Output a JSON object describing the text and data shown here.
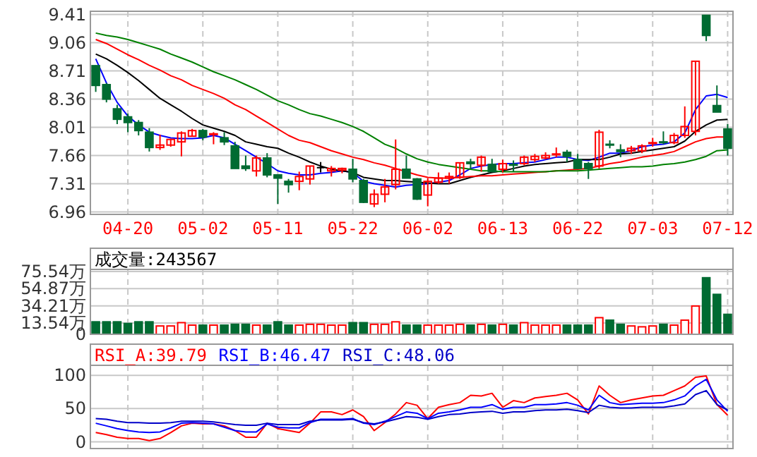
{
  "chart_data": [
    {
      "type": "candlestick",
      "categories": [
        null,
        null,
        null,
        "04-20",
        null,
        null,
        null,
        null,
        null,
        null,
        "05-02",
        null,
        null,
        null,
        null,
        null,
        null,
        "05-11",
        null,
        null,
        null,
        null,
        null,
        null,
        "05-22",
        null,
        null,
        null,
        null,
        null,
        null,
        "06-02",
        null,
        null,
        null,
        null,
        null,
        null,
        "06-13",
        null,
        null,
        null,
        null,
        null,
        null,
        "06-22",
        null,
        null,
        null,
        null,
        null,
        null,
        "07-03",
        null,
        null,
        null,
        null,
        null,
        null,
        "07-12"
      ],
      "ohlc": [
        [
          8.775,
          8.78,
          8.45,
          8.53
        ],
        [
          8.54,
          8.56,
          8.32,
          8.36
        ],
        [
          8.24,
          8.29,
          8.05,
          8.11
        ],
        [
          8.14,
          8.18,
          7.95,
          8.07
        ],
        [
          8.07,
          8.1,
          7.91,
          7.97
        ],
        [
          7.95,
          8.0,
          7.71,
          7.76
        ],
        [
          7.76,
          7.92,
          7.73,
          7.79
        ],
        [
          7.79,
          7.87,
          7.77,
          7.86
        ],
        [
          7.83,
          7.96,
          7.65,
          7.94
        ],
        [
          7.9,
          7.99,
          7.9,
          7.97
        ],
        [
          7.97,
          7.99,
          7.85,
          7.89
        ],
        [
          7.92,
          7.95,
          7.8,
          7.93
        ],
        [
          7.88,
          7.95,
          7.79,
          7.83
        ],
        [
          7.78,
          7.83,
          7.5,
          7.5
        ],
        [
          7.53,
          7.66,
          7.47,
          7.5
        ],
        [
          7.47,
          7.66,
          7.4,
          7.63
        ],
        [
          7.63,
          7.69,
          7.39,
          7.42
        ],
        [
          7.42,
          7.42,
          7.06,
          7.38
        ],
        [
          7.34,
          7.37,
          7.2,
          7.3
        ],
        [
          7.34,
          7.46,
          7.23,
          7.4
        ],
        [
          7.37,
          7.53,
          7.3,
          7.53
        ],
        [
          7.51,
          7.58,
          7.45,
          7.51
        ],
        [
          7.47,
          7.53,
          7.4,
          7.5
        ],
        [
          7.48,
          7.51,
          7.44,
          7.5
        ],
        [
          7.49,
          7.62,
          7.33,
          7.37
        ],
        [
          7.35,
          7.37,
          7.07,
          7.08
        ],
        [
          7.06,
          7.24,
          7.02,
          7.18
        ],
        [
          7.18,
          7.37,
          7.08,
          7.27
        ],
        [
          7.3,
          7.86,
          7.24,
          7.49
        ],
        [
          7.49,
          7.66,
          7.38,
          7.38
        ],
        [
          7.37,
          7.38,
          7.11,
          7.12
        ],
        [
          7.17,
          7.38,
          7.03,
          7.34
        ],
        [
          7.33,
          7.45,
          7.31,
          7.38
        ],
        [
          7.38,
          7.45,
          7.31,
          7.4
        ],
        [
          7.39,
          7.57,
          7.37,
          7.57
        ],
        [
          7.58,
          7.62,
          7.5,
          7.56
        ],
        [
          7.54,
          7.66,
          7.46,
          7.64
        ],
        [
          7.55,
          7.62,
          7.46,
          7.46
        ],
        [
          7.49,
          7.61,
          7.45,
          7.56
        ],
        [
          7.55,
          7.6,
          7.46,
          7.54
        ],
        [
          7.56,
          7.66,
          7.54,
          7.64
        ],
        [
          7.61,
          7.68,
          7.58,
          7.65
        ],
        [
          7.63,
          7.7,
          7.61,
          7.66
        ],
        [
          7.67,
          7.76,
          7.64,
          7.68
        ],
        [
          7.7,
          7.73,
          7.58,
          7.65
        ],
        [
          7.61,
          7.68,
          7.49,
          7.5
        ],
        [
          7.56,
          7.58,
          7.37,
          7.5
        ],
        [
          7.53,
          7.98,
          7.5,
          7.95
        ],
        [
          7.8,
          7.85,
          7.75,
          7.79
        ],
        [
          7.73,
          7.8,
          7.64,
          7.71
        ],
        [
          7.72,
          7.78,
          7.68,
          7.75
        ],
        [
          7.72,
          7.8,
          7.69,
          7.78
        ],
        [
          7.81,
          7.88,
          7.77,
          7.82
        ],
        [
          7.83,
          7.96,
          7.8,
          7.82
        ],
        [
          7.82,
          7.94,
          7.8,
          7.91
        ],
        [
          7.91,
          8.27,
          7.88,
          8.02
        ],
        [
          7.96,
          8.83,
          7.91,
          8.83
        ],
        [
          9.4,
          9.4,
          9.08,
          9.15
        ],
        [
          8.28,
          8.53,
          8.2,
          8.2
        ],
        [
          7.99,
          8.05,
          7.66,
          7.75
        ]
      ],
      "colors": [
        "#006b32",
        "#006b32",
        "#006b32",
        "#006b32",
        "#006b32",
        "#006b32",
        "#ff0000",
        "#ff0000",
        "#ff0000",
        "#ff0000",
        "#006b32",
        "#ff0000",
        "#006b32",
        "#006b32",
        "#006b32",
        "#ff0000",
        "#006b32",
        "#006b32",
        "#006b32",
        "#ff0000",
        "#ff0000",
        "#000000",
        "#ff0000",
        "#ff0000",
        "#006b32",
        "#006b32",
        "#ff0000",
        "#ff0000",
        "#ff0000",
        "#006b32",
        "#006b32",
        "#ff0000",
        "#ff0000",
        "#ff0000",
        "#ff0000",
        "#006b32",
        "#ff0000",
        "#006b32",
        "#ff0000",
        "#006b32",
        "#ff0000",
        "#ff0000",
        "#ff0000",
        "#ff0000",
        "#006b32",
        "#006b32",
        "#006b32",
        "#ff0000",
        "#006b32",
        "#006b32",
        "#ff0000",
        "#ff0000",
        "#ff0000",
        "#006b32",
        "#ff0000",
        "#ff0000",
        "#ff0000",
        "#006b32",
        "#006b32",
        "#006b32"
      ],
      "series": [
        {
          "type": "line",
          "color": "#0000ff",
          "values": [
            8.86,
            8.56,
            8.32,
            8.15,
            8.04,
            7.95,
            7.91,
            7.88,
            7.87,
            7.87,
            7.88,
            7.91,
            7.88,
            7.8,
            7.72,
            7.64,
            7.56,
            7.47,
            7.44,
            7.42,
            7.42,
            7.44,
            7.45,
            7.47,
            7.45,
            7.34,
            7.31,
            7.29,
            7.27,
            7.29,
            7.3,
            7.31,
            7.33,
            7.35,
            7.42,
            7.5,
            7.53,
            7.55,
            7.56,
            7.56,
            7.57,
            7.58,
            7.61,
            7.64,
            7.64,
            7.61,
            7.6,
            7.64,
            7.69,
            7.69,
            7.72,
            7.77,
            7.79,
            7.8,
            7.83,
            7.94,
            8.23,
            8.4,
            8.42,
            8.38
          ]
        },
        {
          "type": "line",
          "color": "#000000",
          "values": [
            8.92,
            8.86,
            8.78,
            8.69,
            8.59,
            8.48,
            8.37,
            8.29,
            8.21,
            8.12,
            8.04,
            8.0,
            7.96,
            7.91,
            7.83,
            7.8,
            7.77,
            7.75,
            7.69,
            7.64,
            7.58,
            7.53,
            7.49,
            7.47,
            7.45,
            7.39,
            7.37,
            7.35,
            7.35,
            7.34,
            7.33,
            7.32,
            7.31,
            7.31,
            7.35,
            7.39,
            7.42,
            7.45,
            7.47,
            7.5,
            7.53,
            7.55,
            7.56,
            7.57,
            7.58,
            7.61,
            7.61,
            7.61,
            7.64,
            7.68,
            7.69,
            7.71,
            7.73,
            7.75,
            7.77,
            7.84,
            7.96,
            8.04,
            8.1,
            8.11
          ]
        },
        {
          "type": "line",
          "color": "#ff0000",
          "values": [
            9.1,
            9.05,
            8.98,
            8.91,
            8.85,
            8.78,
            8.72,
            8.65,
            8.6,
            8.53,
            8.48,
            8.43,
            8.37,
            8.29,
            8.23,
            8.15,
            8.07,
            7.99,
            7.91,
            7.85,
            7.82,
            7.77,
            7.72,
            7.68,
            7.64,
            7.61,
            7.57,
            7.54,
            7.5,
            7.46,
            7.42,
            7.39,
            7.38,
            7.38,
            7.39,
            7.4,
            7.41,
            7.41,
            7.42,
            7.43,
            7.44,
            7.45,
            7.46,
            7.47,
            7.48,
            7.49,
            7.5,
            7.53,
            7.56,
            7.58,
            7.61,
            7.64,
            7.66,
            7.68,
            7.71,
            7.77,
            7.83,
            7.87,
            7.89,
            7.89
          ]
        },
        {
          "type": "line",
          "color": "#008000",
          "values": [
            9.18,
            9.15,
            9.13,
            9.1,
            9.06,
            9.02,
            8.98,
            8.92,
            8.87,
            8.82,
            8.76,
            8.7,
            8.65,
            8.6,
            8.54,
            8.48,
            8.41,
            8.34,
            8.29,
            8.23,
            8.18,
            8.15,
            8.11,
            8.07,
            8.02,
            7.96,
            7.88,
            7.8,
            7.75,
            7.68,
            7.62,
            7.58,
            7.55,
            7.53,
            7.51,
            7.49,
            7.47,
            7.47,
            7.46,
            7.46,
            7.46,
            7.46,
            7.46,
            7.47,
            7.47,
            7.47,
            7.48,
            7.49,
            7.5,
            7.51,
            7.52,
            7.52,
            7.53,
            7.55,
            7.56,
            7.58,
            7.61,
            7.65,
            7.72,
            7.73
          ]
        }
      ],
      "ylim": [
        6.93,
        9.45
      ],
      "yticks": [
        6.96,
        7.31,
        7.66,
        8.01,
        8.36,
        8.71,
        9.06,
        9.41
      ],
      "grid": true
    },
    {
      "type": "bar",
      "title": "成交量:243567",
      "categories": [
        null,
        null,
        null,
        null,
        null,
        null,
        null,
        null,
        null,
        null,
        null,
        null,
        null,
        null,
        null,
        null,
        null,
        null,
        null,
        null,
        null,
        null,
        null,
        null,
        null,
        null,
        null,
        null,
        null,
        null,
        null,
        null,
        null,
        null,
        null,
        null,
        null,
        null,
        null,
        null,
        null,
        null,
        null,
        null,
        null,
        null,
        null,
        null,
        null,
        null,
        null,
        null,
        null,
        null,
        null,
        null,
        null,
        null,
        null,
        null
      ],
      "values": [
        15,
        15,
        15,
        13,
        15,
        15,
        10,
        10,
        14,
        11,
        11,
        11,
        11,
        12,
        12,
        11,
        11,
        15,
        11,
        11,
        12,
        12,
        11,
        11,
        14,
        14,
        12,
        12,
        15,
        11,
        11,
        11,
        11,
        11,
        12,
        11,
        12,
        11,
        12,
        11,
        14,
        11,
        11,
        11,
        11,
        11,
        11,
        20,
        17,
        12,
        10,
        9,
        10,
        12,
        11,
        17,
        34,
        68,
        48,
        24
      ],
      "colors": [
        "#006b32",
        "#006b32",
        "#006b32",
        "#006b32",
        "#006b32",
        "#006b32",
        "#ff0000",
        "#ff0000",
        "#ff0000",
        "#ff0000",
        "#006b32",
        "#ff0000",
        "#006b32",
        "#006b32",
        "#006b32",
        "#ff0000",
        "#006b32",
        "#006b32",
        "#006b32",
        "#ff0000",
        "#ff0000",
        "#ff0000",
        "#ff0000",
        "#ff0000",
        "#006b32",
        "#006b32",
        "#ff0000",
        "#ff0000",
        "#ff0000",
        "#006b32",
        "#006b32",
        "#ff0000",
        "#ff0000",
        "#ff0000",
        "#ff0000",
        "#006b32",
        "#ff0000",
        "#006b32",
        "#ff0000",
        "#006b32",
        "#ff0000",
        "#ff0000",
        "#ff0000",
        "#ff0000",
        "#006b32",
        "#006b32",
        "#006b32",
        "#ff0000",
        "#006b32",
        "#006b32",
        "#ff0000",
        "#ff0000",
        "#ff0000",
        "#006b32",
        "#ff0000",
        "#ff0000",
        "#ff0000",
        "#006b32",
        "#006b32",
        "#006b32"
      ],
      "ylim": [
        0,
        78
      ],
      "yticks": [
        0,
        {
          "value": 13.54,
          "label": "13.54万"
        },
        {
          "value": 34.21,
          "label": "34.21万"
        },
        {
          "value": 54.87,
          "label": "54.87万"
        },
        {
          "value": 75.54,
          "label": "75.54万"
        }
      ],
      "grid": true,
      "tick_labels": "y"
    },
    {
      "type": "line",
      "categories": [
        null,
        null,
        null,
        null,
        null,
        null,
        null,
        null,
        null,
        null,
        null,
        null,
        null,
        null,
        null,
        null,
        null,
        null,
        null,
        null,
        null,
        null,
        null,
        null,
        null,
        null,
        null,
        null,
        null,
        null,
        null,
        null,
        null,
        null,
        null,
        null,
        null,
        null,
        null,
        null,
        null,
        null,
        null,
        null,
        null,
        null,
        null,
        null,
        null,
        null,
        null,
        null,
        null,
        null,
        null,
        null,
        null,
        null,
        null,
        null
      ],
      "series": [
        {
          "name": "RSI_A:39.79",
          "color": "#ff0000",
          "values": [
            14,
            11,
            7,
            5,
            5,
            2,
            5,
            14,
            24,
            28,
            27,
            27,
            24,
            17,
            7,
            7,
            28,
            20,
            17,
            14,
            28,
            45,
            45,
            41,
            48,
            38,
            17,
            29,
            42,
            59,
            55,
            35,
            52,
            56,
            59,
            70,
            69,
            73,
            52,
            62,
            59,
            66,
            68,
            70,
            73,
            63,
            42,
            84,
            70,
            59,
            63,
            66,
            69,
            70,
            77,
            84,
            97,
            99,
            56,
            40
          ]
        },
        {
          "name": "RSI_B:46.47",
          "color": "#0000ff",
          "values": [
            28,
            24,
            20,
            17,
            15,
            14,
            15,
            21,
            28,
            29,
            28,
            27,
            22,
            17,
            15,
            15,
            27,
            22,
            21,
            21,
            29,
            34,
            34,
            34,
            35,
            28,
            26,
            31,
            38,
            45,
            43,
            35,
            43,
            45,
            48,
            52,
            52,
            56,
            49,
            52,
            52,
            56,
            56,
            57,
            59,
            55,
            48,
            70,
            59,
            56,
            57,
            58,
            58,
            59,
            63,
            69,
            84,
            94,
            63,
            46
          ]
        },
        {
          "name": "RSI_C:48.06",
          "color": "#0000c8",
          "values": [
            35,
            34,
            31,
            29,
            29,
            28,
            28,
            29,
            31,
            31,
            31,
            30,
            28,
            26,
            25,
            25,
            28,
            26,
            26,
            26,
            31,
            33,
            33,
            33,
            34,
            29,
            27,
            30,
            34,
            38,
            37,
            34,
            38,
            41,
            42,
            44,
            45,
            46,
            43,
            45,
            45,
            47,
            48,
            48,
            49,
            47,
            44,
            55,
            52,
            51,
            51,
            52,
            52,
            52,
            54,
            57,
            71,
            77,
            56,
            48
          ]
        }
      ],
      "ylim": [
        -10,
        115
      ],
      "yticks": [
        0,
        50,
        100
      ],
      "grid": true,
      "tick_labels": "y",
      "legend": "top left"
    }
  ]
}
